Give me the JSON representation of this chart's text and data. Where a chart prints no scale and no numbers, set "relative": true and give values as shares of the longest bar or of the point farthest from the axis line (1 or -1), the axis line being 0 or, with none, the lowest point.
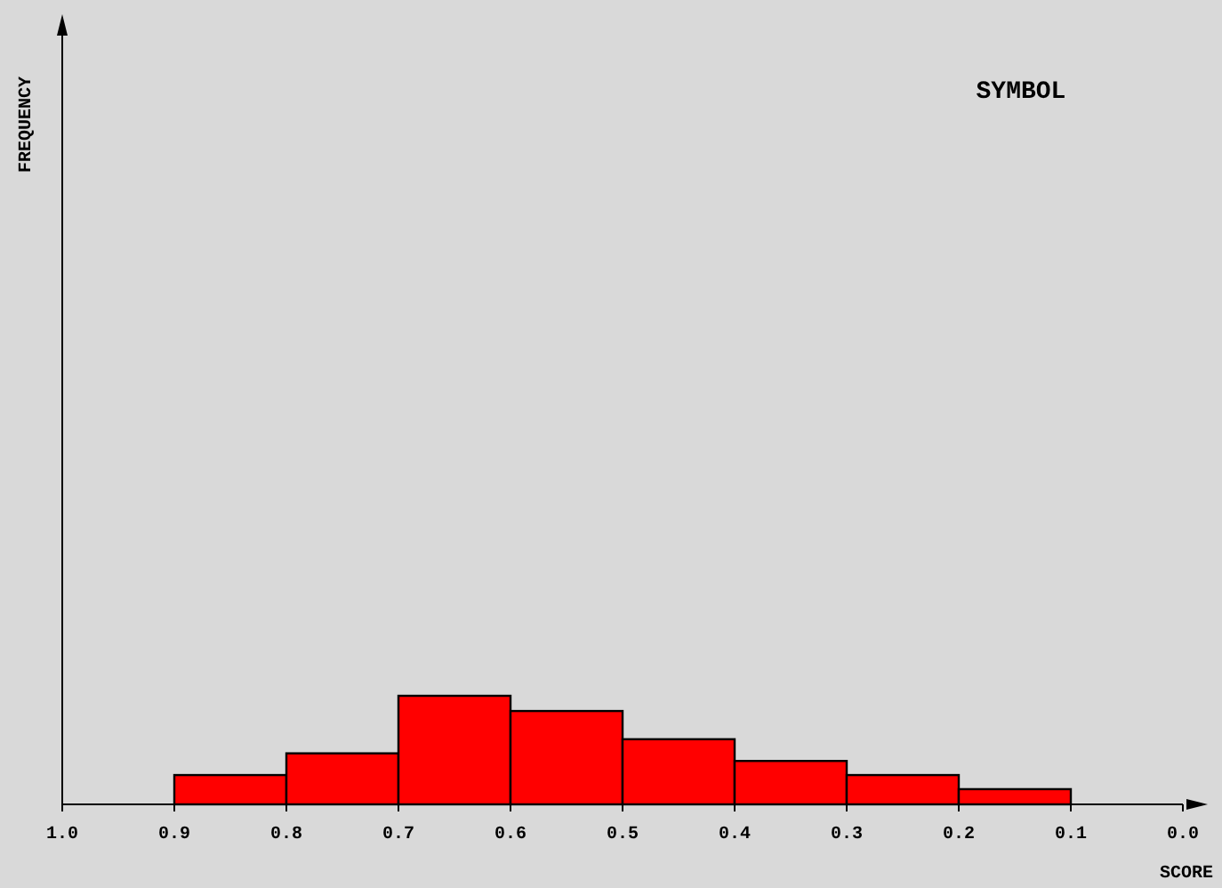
{
  "chart_data": {
    "type": "bar",
    "title": "SYMBOL",
    "xlabel": "SCORE",
    "annotations": [
      "FREQUENCY"
    ],
    "relative": true,
    "x": [
      0.85,
      0.75,
      0.65,
      0.55,
      0.45,
      0.35,
      0.25,
      0.15
    ],
    "values": [
      0.27,
      0.47,
      1,
      0.86,
      0.6,
      0.4,
      0.27,
      0.14
    ],
    "color": "#ff0000",
    "xlim": [
      1.0,
      0.0
    ],
    "xticks": [
      {
        "value": 1,
        "label": "1.0"
      },
      {
        "value": 0.9,
        "label": "0.9"
      },
      {
        "value": 0.8,
        "label": "0.8"
      },
      {
        "value": 0.7,
        "label": "0.7"
      },
      {
        "value": 0.6,
        "label": "0.6"
      },
      {
        "value": 0.5,
        "label": "0.5"
      },
      {
        "value": 0.4,
        "label": "0.4"
      },
      {
        "value": 0.3,
        "label": "0.3"
      },
      {
        "value": 0.2,
        "label": "0.2"
      },
      {
        "value": 0.1,
        "label": "0.1"
      },
      {
        "value": 0,
        "label": "0.0"
      }
    ],
    "tick_labels": "x"
  }
}
